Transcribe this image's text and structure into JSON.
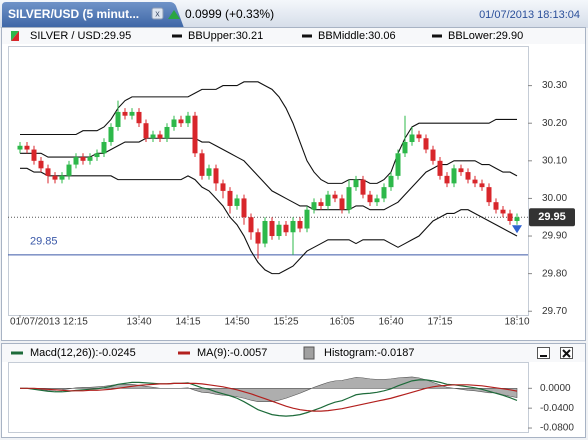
{
  "window": {
    "tab_title": "SILVER/USD (5 minut...",
    "change": "0.0999 (+0.33%)",
    "timestamp": "01/07/2013 18:13:04"
  },
  "chart_data": [
    {
      "type": "candlestick",
      "name": "SILVER / USD:29.95",
      "up_color": "#2db84a",
      "down_color": "#d8262b",
      "categories": [
        "01/07/2013 12:15",
        null,
        null,
        null,
        null,
        null,
        null,
        null,
        null,
        null,
        null,
        null,
        null,
        null,
        null,
        null,
        null,
        "13:40",
        null,
        null,
        null,
        null,
        null,
        null,
        "14:15",
        null,
        null,
        null,
        null,
        null,
        null,
        "14:50",
        null,
        null,
        null,
        null,
        null,
        null,
        "15:25",
        null,
        null,
        null,
        null,
        null,
        null,
        null,
        "16:05",
        null,
        null,
        null,
        null,
        null,
        null,
        "16:40",
        null,
        null,
        null,
        null,
        null,
        null,
        "17:15",
        null,
        null,
        null,
        null,
        null,
        null,
        null,
        null,
        null,
        null,
        "18:10"
      ],
      "open": [
        30.13,
        30.14,
        30.13,
        30.1,
        30.08,
        30.06,
        30.05,
        30.06,
        30.09,
        30.11,
        30.1,
        30.11,
        30.12,
        30.15,
        30.19,
        30.23,
        30.22,
        30.23,
        30.2,
        30.16,
        30.17,
        30.16,
        30.19,
        30.21,
        30.2,
        30.22,
        30.12,
        30.06,
        30.08,
        30.04,
        30.02,
        29.98,
        30.0,
        29.95,
        29.91,
        29.88,
        29.94,
        29.9,
        29.93,
        29.91,
        29.94,
        29.92,
        29.97,
        29.99,
        29.98,
        30.01,
        30.0,
        29.97,
        30.03,
        30.05,
        30.01,
        29.99,
        30.0,
        30.03,
        30.06,
        30.12,
        30.15,
        30.17,
        30.16,
        30.13,
        30.1,
        30.06,
        30.04,
        30.08,
        30.07,
        30.05,
        30.04,
        30.03,
        29.99,
        29.97,
        29.96,
        29.94
      ],
      "high": [
        30.15,
        30.15,
        30.14,
        30.11,
        30.09,
        30.07,
        30.07,
        30.1,
        30.12,
        30.12,
        30.12,
        30.13,
        30.16,
        30.2,
        30.26,
        30.24,
        30.24,
        30.24,
        30.21,
        30.18,
        30.18,
        30.2,
        30.22,
        30.22,
        30.23,
        30.23,
        30.13,
        30.09,
        30.09,
        30.05,
        30.03,
        30.01,
        30.01,
        29.96,
        29.92,
        29.95,
        29.95,
        29.94,
        29.94,
        29.95,
        29.95,
        29.98,
        30.0,
        30.0,
        30.02,
        30.02,
        30.01,
        30.05,
        30.06,
        30.06,
        30.02,
        30.01,
        30.04,
        30.07,
        30.13,
        30.22,
        30.19,
        30.18,
        30.17,
        30.14,
        30.11,
        30.07,
        30.09,
        30.09,
        30.08,
        30.06,
        30.05,
        30.04,
        30.0,
        29.98,
        29.97,
        29.96
      ],
      "low": [
        30.12,
        30.12,
        30.09,
        30.07,
        30.04,
        30.04,
        30.04,
        30.05,
        30.08,
        30.09,
        30.09,
        30.1,
        30.11,
        30.14,
        30.18,
        30.21,
        30.21,
        30.19,
        30.15,
        30.15,
        30.15,
        30.15,
        30.18,
        30.19,
        30.19,
        30.11,
        30.05,
        30.05,
        30.02,
        30.0,
        29.96,
        29.97,
        29.93,
        29.89,
        29.84,
        29.87,
        29.89,
        29.89,
        29.9,
        29.85,
        29.91,
        29.91,
        29.96,
        29.97,
        29.97,
        29.99,
        29.96,
        29.96,
        30.02,
        30.0,
        29.98,
        29.98,
        29.99,
        30.02,
        30.05,
        30.11,
        30.14,
        30.15,
        30.12,
        30.09,
        30.05,
        30.03,
        30.03,
        30.06,
        30.04,
        30.03,
        30.02,
        29.98,
        29.96,
        29.95,
        29.93,
        29.93
      ],
      "close": [
        30.14,
        30.13,
        30.1,
        30.08,
        30.06,
        30.05,
        30.06,
        30.09,
        30.11,
        30.1,
        30.11,
        30.12,
        30.15,
        30.19,
        30.23,
        30.22,
        30.23,
        30.2,
        30.16,
        30.17,
        30.16,
        30.19,
        30.21,
        30.2,
        30.22,
        30.12,
        30.06,
        30.08,
        30.04,
        30.02,
        29.98,
        30.0,
        29.95,
        29.91,
        29.88,
        29.94,
        29.9,
        29.93,
        29.91,
        29.94,
        29.92,
        29.97,
        29.99,
        29.98,
        30.01,
        30.0,
        29.97,
        30.03,
        30.05,
        30.01,
        29.99,
        30.0,
        30.03,
        30.06,
        30.12,
        30.15,
        30.17,
        30.16,
        30.13,
        30.1,
        30.06,
        30.04,
        30.08,
        30.07,
        30.05,
        30.04,
        30.03,
        29.99,
        29.97,
        29.96,
        29.94,
        29.95
      ],
      "series": [
        {
          "name": "BBUpper:30.21",
          "color": "#111111",
          "values": [
            30.17,
            30.17,
            30.17,
            30.17,
            30.17,
            30.17,
            30.17,
            30.17,
            30.17,
            30.18,
            30.18,
            30.18,
            30.19,
            30.21,
            30.24,
            30.26,
            30.27,
            30.27,
            30.27,
            30.27,
            30.27,
            30.27,
            30.27,
            30.27,
            30.27,
            30.28,
            30.29,
            30.29,
            30.29,
            30.3,
            30.3,
            30.3,
            30.31,
            30.31,
            30.31,
            30.3,
            30.29,
            30.27,
            30.24,
            30.2,
            30.15,
            30.1,
            30.07,
            30.05,
            30.04,
            30.04,
            30.04,
            30.05,
            30.05,
            30.05,
            30.04,
            30.04,
            30.05,
            30.07,
            30.12,
            30.16,
            30.19,
            30.2,
            30.2,
            30.2,
            30.2,
            30.2,
            30.2,
            30.2,
            30.2,
            30.2,
            30.2,
            30.2,
            30.21,
            30.21,
            30.21,
            30.21
          ]
        },
        {
          "name": "BBMiddle:30.06",
          "color": "#111111",
          "values": [
            30.12,
            30.12,
            30.12,
            30.12,
            30.11,
            30.11,
            30.11,
            30.11,
            30.11,
            30.11,
            30.11,
            30.12,
            30.12,
            30.13,
            30.14,
            30.15,
            30.15,
            30.15,
            30.16,
            30.16,
            30.16,
            30.16,
            30.16,
            30.16,
            30.16,
            30.16,
            30.15,
            30.15,
            30.14,
            30.13,
            30.12,
            30.11,
            30.1,
            30.08,
            30.06,
            30.04,
            30.02,
            30.01,
            30.0,
            29.99,
            29.98,
            29.98,
            29.97,
            29.97,
            29.97,
            29.97,
            29.97,
            29.97,
            29.98,
            29.98,
            29.97,
            29.97,
            29.97,
            29.98,
            29.99,
            30.01,
            30.03,
            30.05,
            30.07,
            30.08,
            30.09,
            30.09,
            30.1,
            30.1,
            30.1,
            30.1,
            30.09,
            30.09,
            30.08,
            30.07,
            30.07,
            30.06
          ]
        },
        {
          "name": "BBLower:29.90",
          "color": "#111111",
          "values": [
            30.08,
            30.08,
            30.07,
            30.07,
            30.06,
            30.06,
            30.06,
            30.06,
            30.06,
            30.06,
            30.06,
            30.06,
            30.06,
            30.06,
            30.05,
            30.05,
            30.05,
            30.05,
            30.05,
            30.05,
            30.05,
            30.05,
            30.05,
            30.05,
            30.06,
            30.05,
            30.03,
            30.02,
            30.0,
            29.98,
            29.95,
            29.93,
            29.9,
            29.86,
            29.83,
            29.81,
            29.8,
            29.8,
            29.81,
            29.82,
            29.84,
            29.86,
            29.87,
            29.88,
            29.89,
            29.89,
            29.89,
            29.89,
            29.88,
            29.89,
            29.89,
            29.89,
            29.89,
            29.88,
            29.87,
            29.88,
            29.89,
            29.9,
            29.92,
            29.94,
            29.95,
            29.96,
            29.96,
            29.97,
            29.97,
            29.96,
            29.95,
            29.94,
            29.93,
            29.92,
            29.91,
            29.9
          ]
        }
      ],
      "level": 29.85,
      "level_color": "#3a58a8",
      "last_price": 29.95,
      "ylim": [
        29.69,
        30.4
      ],
      "yticks": [
        {
          "value": 29.7,
          "label": "29.70"
        },
        {
          "value": 29.8,
          "label": "29.80"
        },
        {
          "value": 29.9,
          "label": "29.90"
        },
        {
          "value": 30.0,
          "label": "30.00"
        },
        {
          "value": 30.1,
          "label": "30.10"
        },
        {
          "value": 30.2,
          "label": "30.20"
        },
        {
          "value": 30.3,
          "label": "30.30"
        }
      ]
    },
    {
      "type": "macd",
      "series": [
        {
          "name": "Macd(12,26)):-0.0245",
          "color": "#1d6b3a",
          "values": [
            0,
            0,
            -0.002,
            -0.004,
            -0.006,
            -0.007,
            -0.007,
            -0.006,
            -0.004,
            -0.003,
            -0.002,
            -0.001,
            0.001,
            0.004,
            0.008,
            0.01,
            0.012,
            0.012,
            0.011,
            0.01,
            0.009,
            0.009,
            0.01,
            0.01,
            0.011,
            0.006,
            0.001,
            -0.002,
            -0.007,
            -0.011,
            -0.015,
            -0.02,
            -0.027,
            -0.035,
            -0.043,
            -0.048,
            -0.053,
            -0.055,
            -0.056,
            -0.055,
            -0.053,
            -0.049,
            -0.044,
            -0.039,
            -0.033,
            -0.028,
            -0.025,
            -0.019,
            -0.013,
            -0.011,
            -0.01,
            -0.008,
            -0.005,
            -0.001,
            0.005,
            0.01,
            0.015,
            0.017,
            0.017,
            0.015,
            0.012,
            0.008,
            0.007,
            0.005,
            0.003,
            0.001,
            -0.002,
            -0.006,
            -0.01,
            -0.014,
            -0.019,
            -0.0245
          ]
        },
        {
          "name": "MA(9):-0.0057",
          "color": "#b3201e",
          "values": [
            0,
            0,
            0,
            -0.001,
            -0.002,
            -0.003,
            -0.004,
            -0.005,
            -0.005,
            -0.005,
            -0.004,
            -0.004,
            -0.003,
            -0.002,
            0,
            0.002,
            0.004,
            0.006,
            0.007,
            0.008,
            0.009,
            0.009,
            0.01,
            0.01,
            0.01,
            0.01,
            0.009,
            0.007,
            0.005,
            0.003,
            0,
            -0.003,
            -0.007,
            -0.011,
            -0.016,
            -0.021,
            -0.026,
            -0.031,
            -0.036,
            -0.04,
            -0.043,
            -0.045,
            -0.046,
            -0.046,
            -0.045,
            -0.043,
            -0.041,
            -0.038,
            -0.035,
            -0.032,
            -0.029,
            -0.026,
            -0.023,
            -0.02,
            -0.016,
            -0.012,
            -0.008,
            -0.004,
            0,
            0.003,
            0.005,
            0.006,
            0.007,
            0.007,
            0.007,
            0.006,
            0.005,
            0.003,
            0.001,
            -0.001,
            -0.003,
            -0.0057
          ]
        },
        {
          "name": "Histogram:-0.0187",
          "color": "#a0a0a0",
          "kind": "area",
          "values": [
            0,
            0,
            -0.002,
            -0.003,
            -0.004,
            -0.004,
            -0.003,
            -0.001,
            0.001,
            0.002,
            0.002,
            0.003,
            0.004,
            0.006,
            0.008,
            0.008,
            0.008,
            0.006,
            0.004,
            0.002,
            0,
            0,
            0,
            0,
            0.001,
            -0.004,
            -0.008,
            -0.009,
            -0.012,
            -0.014,
            -0.015,
            -0.017,
            -0.02,
            -0.024,
            -0.027,
            -0.027,
            -0.027,
            -0.024,
            -0.02,
            -0.015,
            -0.01,
            -0.004,
            0.002,
            0.007,
            0.012,
            0.015,
            0.016,
            0.019,
            0.022,
            0.021,
            0.019,
            0.018,
            0.018,
            0.019,
            0.021,
            0.022,
            0.023,
            0.021,
            0.017,
            0.012,
            0.007,
            0.002,
            0,
            -0.002,
            -0.004,
            -0.005,
            -0.007,
            -0.009,
            -0.009,
            -0.013,
            -0.016,
            -0.0187
          ]
        }
      ],
      "ylim": [
        -0.088,
        0.053
      ],
      "yticks": [
        {
          "value": 0,
          "label": "0.0000"
        },
        {
          "value": -0.04,
          "label": "-0.0400"
        },
        {
          "value": -0.08,
          "label": "-0.0800"
        }
      ]
    }
  ]
}
